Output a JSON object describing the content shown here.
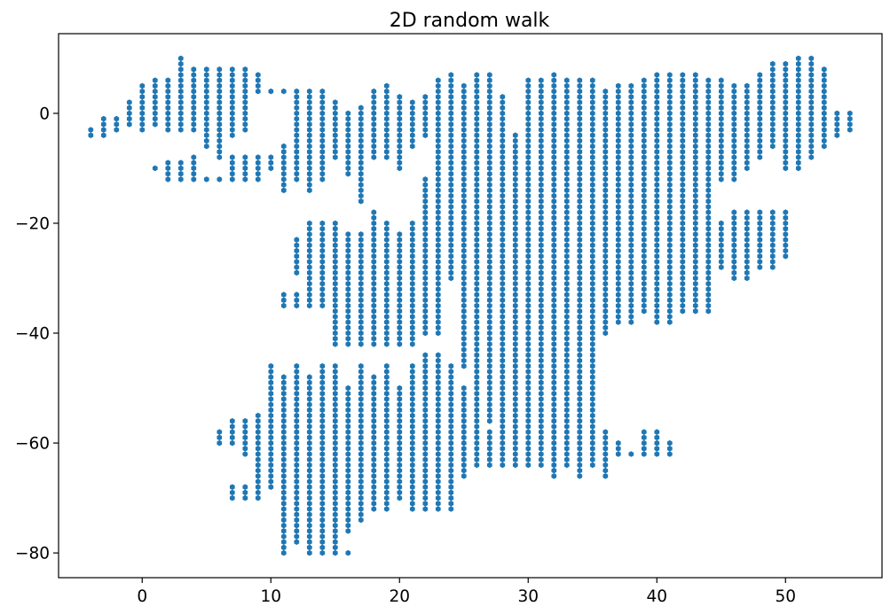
{
  "chart_data": {
    "type": "scatter",
    "title": "2D random walk",
    "xlabel": "",
    "ylabel": "",
    "xlim": [
      -6.5,
      57.5
    ],
    "ylim": [
      -84.5,
      14.5
    ],
    "xticks": [
      0,
      10,
      20,
      30,
      40,
      50
    ],
    "yticks": [
      0,
      -20,
      -40,
      -60,
      -80
    ],
    "xtick_labels": [
      "0",
      "10",
      "20",
      "30",
      "40",
      "50"
    ],
    "ytick_labels": [
      "0",
      "−20",
      "−40",
      "−60",
      "−80"
    ],
    "grid": false,
    "marker": "filled-hexagon",
    "color": "#1f77b4",
    "point_step": 1,
    "series": [
      {
        "columns": [
          {
            "x": -4,
            "ranges": [
              [
                -4,
                -3
              ]
            ]
          },
          {
            "x": -3,
            "ranges": [
              [
                -4,
                -1
              ]
            ]
          },
          {
            "x": -2,
            "ranges": [
              [
                -3,
                -1
              ]
            ]
          },
          {
            "x": -1,
            "ranges": [
              [
                -2,
                2
              ]
            ]
          },
          {
            "x": 0,
            "ranges": [
              [
                -3,
                5
              ]
            ]
          },
          {
            "x": 1,
            "ranges": [
              [
                -2,
                6
              ],
              [
                -10,
                -10
              ]
            ]
          },
          {
            "x": 2,
            "ranges": [
              [
                -3,
                6
              ],
              [
                -12,
                -9
              ]
            ]
          },
          {
            "x": 3,
            "ranges": [
              [
                -3,
                10
              ],
              [
                -12,
                -9
              ]
            ]
          },
          {
            "x": 4,
            "ranges": [
              [
                -3,
                8
              ],
              [
                -12,
                -8
              ]
            ]
          },
          {
            "x": 5,
            "ranges": [
              [
                -6,
                8
              ],
              [
                -12,
                -12
              ]
            ]
          },
          {
            "x": 6,
            "ranges": [
              [
                -8,
                8
              ],
              [
                -12,
                -12
              ]
            ]
          },
          {
            "x": 7,
            "ranges": [
              [
                -4,
                8
              ],
              [
                -12,
                -8
              ]
            ]
          },
          {
            "x": 8,
            "ranges": [
              [
                -3,
                8
              ],
              [
                -12,
                -8
              ]
            ]
          },
          {
            "x": 9,
            "ranges": [
              [
                4,
                7
              ],
              [
                -12,
                -8
              ]
            ]
          },
          {
            "x": 10,
            "ranges": [
              [
                4,
                4
              ],
              [
                -10,
                -8
              ]
            ]
          },
          {
            "x": 11,
            "ranges": [
              [
                4,
                4
              ],
              [
                -14,
                -6
              ],
              [
                -35,
                -33
              ]
            ]
          },
          {
            "x": 12,
            "ranges": [
              [
                -12,
                4
              ],
              [
                -29,
                -23
              ],
              [
                -35,
                -33
              ]
            ]
          },
          {
            "x": 13,
            "ranges": [
              [
                -14,
                4
              ],
              [
                -35,
                -20
              ]
            ]
          },
          {
            "x": 14,
            "ranges": [
              [
                -12,
                4
              ],
              [
                -35,
                -20
              ]
            ]
          },
          {
            "x": 15,
            "ranges": [
              [
                -8,
                2
              ],
              [
                -42,
                -20
              ]
            ]
          },
          {
            "x": 16,
            "ranges": [
              [
                -11,
                0
              ],
              [
                -42,
                -22
              ]
            ]
          },
          {
            "x": 17,
            "ranges": [
              [
                -16,
                1
              ],
              [
                -42,
                -22
              ]
            ]
          },
          {
            "x": 18,
            "ranges": [
              [
                -8,
                4
              ],
              [
                -42,
                -18
              ]
            ]
          },
          {
            "x": 19,
            "ranges": [
              [
                -8,
                5
              ],
              [
                -42,
                -20
              ]
            ]
          },
          {
            "x": 20,
            "ranges": [
              [
                -10,
                3
              ],
              [
                -42,
                -22
              ]
            ]
          },
          {
            "x": 21,
            "ranges": [
              [
                -6,
                2
              ],
              [
                -42,
                -20
              ]
            ]
          },
          {
            "x": 22,
            "ranges": [
              [
                -4,
                3
              ],
              [
                -40,
                -12
              ]
            ]
          },
          {
            "x": 23,
            "ranges": [
              [
                -40,
                6
              ]
            ]
          },
          {
            "x": 24,
            "ranges": [
              [
                -30,
                7
              ]
            ]
          },
          {
            "x": 25,
            "ranges": [
              [
                -46,
                5
              ]
            ]
          },
          {
            "x": 26,
            "ranges": [
              [
                -54,
                7
              ]
            ]
          },
          {
            "x": 27,
            "ranges": [
              [
                -56,
                7
              ]
            ]
          },
          {
            "x": 28,
            "ranges": [
              [
                -52,
                3
              ]
            ]
          },
          {
            "x": 29,
            "ranges": [
              [
                -56,
                -4
              ]
            ]
          },
          {
            "x": 30,
            "ranges": [
              [
                -62,
                6
              ]
            ]
          },
          {
            "x": 31,
            "ranges": [
              [
                -64,
                6
              ]
            ]
          },
          {
            "x": 32,
            "ranges": [
              [
                -66,
                7
              ]
            ]
          },
          {
            "x": 33,
            "ranges": [
              [
                -64,
                6
              ]
            ]
          },
          {
            "x": 34,
            "ranges": [
              [
                -62,
                6
              ]
            ]
          },
          {
            "x": 35,
            "ranges": [
              [
                -58,
                6
              ]
            ]
          },
          {
            "x": 36,
            "ranges": [
              [
                -40,
                4
              ]
            ]
          },
          {
            "x": 37,
            "ranges": [
              [
                -38,
                5
              ]
            ]
          },
          {
            "x": 38,
            "ranges": [
              [
                -38,
                5
              ]
            ]
          },
          {
            "x": 39,
            "ranges": [
              [
                -36,
                6
              ]
            ]
          },
          {
            "x": 40,
            "ranges": [
              [
                -38,
                7
              ]
            ]
          },
          {
            "x": 41,
            "ranges": [
              [
                -38,
                7
              ]
            ]
          },
          {
            "x": 42,
            "ranges": [
              [
                -36,
                7
              ]
            ]
          },
          {
            "x": 43,
            "ranges": [
              [
                -36,
                7
              ]
            ]
          },
          {
            "x": 44,
            "ranges": [
              [
                -36,
                6
              ]
            ]
          },
          {
            "x": 45,
            "ranges": [
              [
                -12,
                6
              ],
              [
                -28,
                -20
              ]
            ]
          },
          {
            "x": 46,
            "ranges": [
              [
                -12,
                5
              ],
              [
                -30,
                -18
              ]
            ]
          },
          {
            "x": 47,
            "ranges": [
              [
                -10,
                5
              ],
              [
                -30,
                -18
              ]
            ]
          },
          {
            "x": 48,
            "ranges": [
              [
                -8,
                7
              ],
              [
                -28,
                -18
              ]
            ]
          },
          {
            "x": 49,
            "ranges": [
              [
                -6,
                9
              ],
              [
                -28,
                -18
              ]
            ]
          },
          {
            "x": 50,
            "ranges": [
              [
                -10,
                9
              ],
              [
                -26,
                -18
              ]
            ]
          },
          {
            "x": 51,
            "ranges": [
              [
                -10,
                10
              ]
            ]
          },
          {
            "x": 52,
            "ranges": [
              [
                -8,
                10
              ]
            ]
          },
          {
            "x": 53,
            "ranges": [
              [
                -6,
                8
              ]
            ]
          },
          {
            "x": 54,
            "ranges": [
              [
                -4,
                0
              ]
            ]
          },
          {
            "x": 55,
            "ranges": [
              [
                -3,
                0
              ]
            ]
          }
        ]
      },
      {
        "columns": [
          {
            "x": 6,
            "ranges": [
              [
                -60,
                -58
              ]
            ]
          },
          {
            "x": 7,
            "ranges": [
              [
                -60,
                -56
              ],
              [
                -70,
                -68
              ]
            ]
          },
          {
            "x": 8,
            "ranges": [
              [
                -62,
                -56
              ],
              [
                -70,
                -68
              ]
            ]
          },
          {
            "x": 9,
            "ranges": [
              [
                -70,
                -55
              ]
            ]
          },
          {
            "x": 10,
            "ranges": [
              [
                -68,
                -46
              ]
            ]
          },
          {
            "x": 11,
            "ranges": [
              [
                -80,
                -48
              ],
              [
                -78,
                -74
              ]
            ]
          },
          {
            "x": 12,
            "ranges": [
              [
                -78,
                -46
              ]
            ]
          },
          {
            "x": 13,
            "ranges": [
              [
                -80,
                -48
              ]
            ]
          },
          {
            "x": 14,
            "ranges": [
              [
                -80,
                -46
              ]
            ]
          },
          {
            "x": 15,
            "ranges": [
              [
                -80,
                -46
              ]
            ]
          },
          {
            "x": 16,
            "ranges": [
              [
                -76,
                -50
              ],
              [
                -80,
                -80
              ]
            ]
          },
          {
            "x": 17,
            "ranges": [
              [
                -74,
                -46
              ]
            ]
          },
          {
            "x": 18,
            "ranges": [
              [
                -72,
                -48
              ]
            ]
          },
          {
            "x": 19,
            "ranges": [
              [
                -72,
                -46
              ]
            ]
          },
          {
            "x": 20,
            "ranges": [
              [
                -70,
                -50
              ]
            ]
          },
          {
            "x": 21,
            "ranges": [
              [
                -72,
                -46
              ]
            ]
          },
          {
            "x": 22,
            "ranges": [
              [
                -72,
                -44
              ]
            ]
          },
          {
            "x": 23,
            "ranges": [
              [
                -72,
                -44
              ]
            ]
          },
          {
            "x": 24,
            "ranges": [
              [
                -72,
                -46
              ]
            ]
          },
          {
            "x": 25,
            "ranges": [
              [
                -66,
                -50
              ]
            ]
          },
          {
            "x": 26,
            "ranges": [
              [
                -64,
                -52
              ]
            ]
          },
          {
            "x": 27,
            "ranges": [
              [
                -64,
                -58
              ]
            ]
          },
          {
            "x": 28,
            "ranges": [
              [
                -64,
                -44
              ]
            ]
          },
          {
            "x": 29,
            "ranges": [
              [
                -64,
                -50
              ]
            ]
          },
          {
            "x": 30,
            "ranges": [
              [
                -64,
                -58
              ]
            ]
          },
          {
            "x": 34,
            "ranges": [
              [
                -66,
                -56
              ]
            ]
          },
          {
            "x": 35,
            "ranges": [
              [
                -64,
                -54
              ]
            ]
          },
          {
            "x": 36,
            "ranges": [
              [
                -66,
                -58
              ]
            ]
          },
          {
            "x": 37,
            "ranges": [
              [
                -62,
                -60
              ]
            ]
          },
          {
            "x": 38,
            "ranges": [
              [
                -62,
                -62
              ]
            ]
          },
          {
            "x": 39,
            "ranges": [
              [
                -62,
                -58
              ]
            ]
          },
          {
            "x": 40,
            "ranges": [
              [
                -62,
                -58
              ]
            ]
          },
          {
            "x": 41,
            "ranges": [
              [
                -62,
                -60
              ]
            ]
          }
        ]
      }
    ]
  }
}
